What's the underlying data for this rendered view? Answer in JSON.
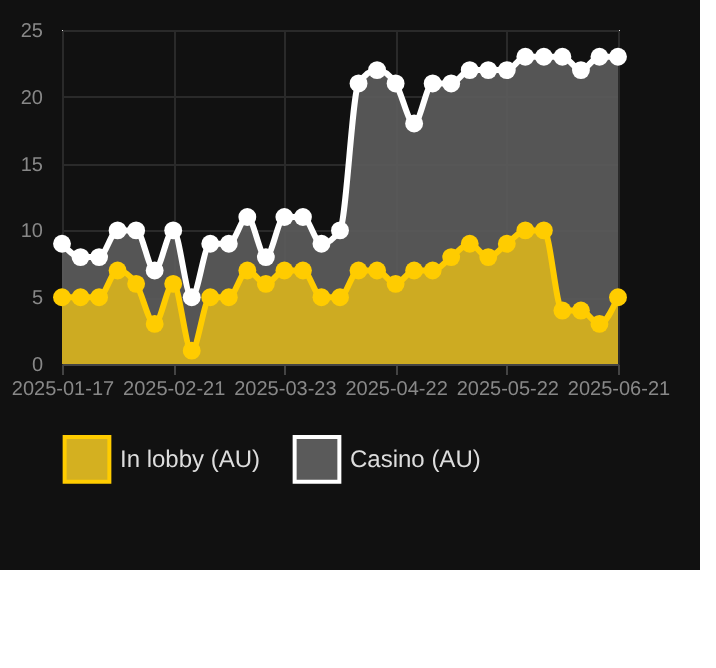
{
  "chart_data": {
    "type": "area",
    "categories": [
      "2025-01-17",
      null,
      null,
      null,
      null,
      null,
      "2025-02-21",
      null,
      null,
      null,
      null,
      null,
      "2025-03-23",
      null,
      null,
      null,
      null,
      null,
      "2025-04-22",
      null,
      null,
      null,
      null,
      null,
      "2025-05-22",
      null,
      null,
      null,
      null,
      null,
      "2025-06-21"
    ],
    "series": [
      {
        "name": "In lobby (AU)",
        "color": "#ffcc00",
        "values": [
          5,
          5,
          5,
          7,
          6,
          3,
          6,
          1,
          5,
          5,
          7,
          6,
          7,
          7,
          5,
          5,
          7,
          7,
          6,
          7,
          7,
          8,
          9,
          8,
          9,
          10,
          10,
          4,
          4,
          3,
          5
        ]
      },
      {
        "name": "Casino (AU)",
        "color": "#ffffff",
        "values": [
          9,
          8,
          8,
          10,
          10,
          7,
          10,
          5,
          9,
          9,
          11,
          8,
          11,
          11,
          9,
          10,
          21,
          22,
          21,
          18,
          21,
          21,
          22,
          22,
          22,
          23,
          23,
          23,
          22,
          23,
          23
        ]
      }
    ],
    "ylim": [
      0,
      25
    ],
    "yticks": [
      0,
      5,
      10,
      15,
      20,
      25
    ],
    "grid": true,
    "legend": "bottom",
    "marker": "circle"
  }
}
